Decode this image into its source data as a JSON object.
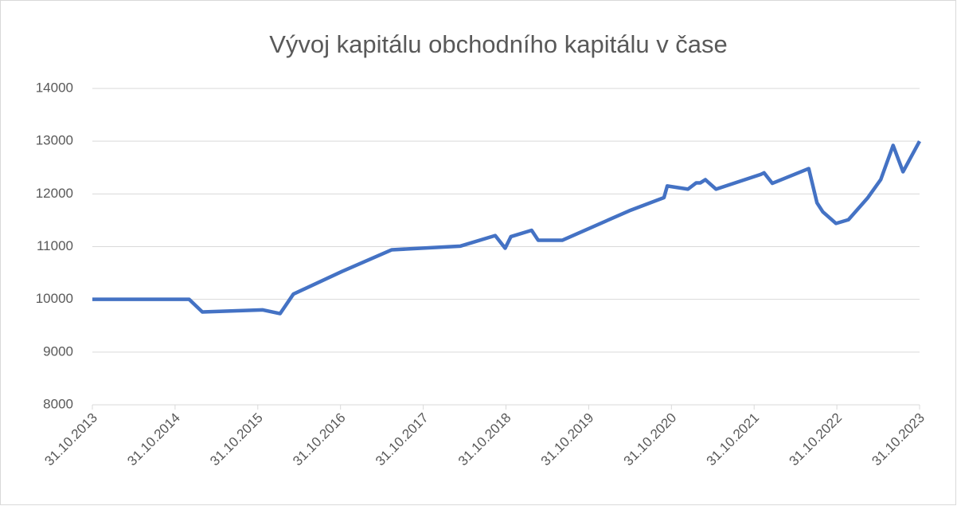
{
  "chart_data": {
    "type": "line",
    "title": "Vývoj kapitálu obchodního kapitálu v čase",
    "series": [
      {
        "color": "#4472c4",
        "x": [
          2013.83,
          2015.0,
          2015.16,
          2015.89,
          2016.1,
          2016.26,
          2016.85,
          2017.45,
          2018.28,
          2018.7,
          2018.82,
          2018.89,
          2019.14,
          2019.22,
          2019.51,
          2020.32,
          2020.74,
          2020.78,
          2021.03,
          2021.13,
          2021.18,
          2021.24,
          2021.37,
          2021.91,
          2021.95,
          2022.05,
          2022.49,
          2022.59,
          2022.66,
          2022.82,
          2022.97,
          2023.2,
          2023.36,
          2023.51,
          2023.63,
          2023.83
        ],
        "values": [
          10000,
          10000,
          9760,
          9800,
          9730,
          10100,
          10530,
          10940,
          11010,
          11210,
          10970,
          11190,
          11310,
          11120,
          11120,
          11680,
          11930,
          12150,
          12090,
          12210,
          12210,
          12270,
          12090,
          12370,
          12400,
          12200,
          12480,
          11830,
          11660,
          11440,
          11510,
          11920,
          12270,
          12920,
          12420,
          13000
        ]
      }
    ],
    "xlim": [
      2013.83,
      2023.83
    ],
    "xticks": [
      {
        "value": 2013.83,
        "label": "31.10.2013"
      },
      {
        "value": 2014.83,
        "label": "31.10.2014"
      },
      {
        "value": 2015.83,
        "label": "31.10.2015"
      },
      {
        "value": 2016.83,
        "label": "31.10.2016"
      },
      {
        "value": 2017.83,
        "label": "31.10.2017"
      },
      {
        "value": 2018.83,
        "label": "31.10.2018"
      },
      {
        "value": 2019.83,
        "label": "31.10.2019"
      },
      {
        "value": 2020.83,
        "label": "31.10.2020"
      },
      {
        "value": 2021.83,
        "label": "31.10.2021"
      },
      {
        "value": 2022.83,
        "label": "31.10.2022"
      },
      {
        "value": 2023.83,
        "label": "31.10.2023"
      }
    ],
    "ylim": [
      8000,
      14000
    ],
    "yticks": [
      8000,
      9000,
      10000,
      11000,
      12000,
      13000,
      14000
    ],
    "grid": true
  }
}
